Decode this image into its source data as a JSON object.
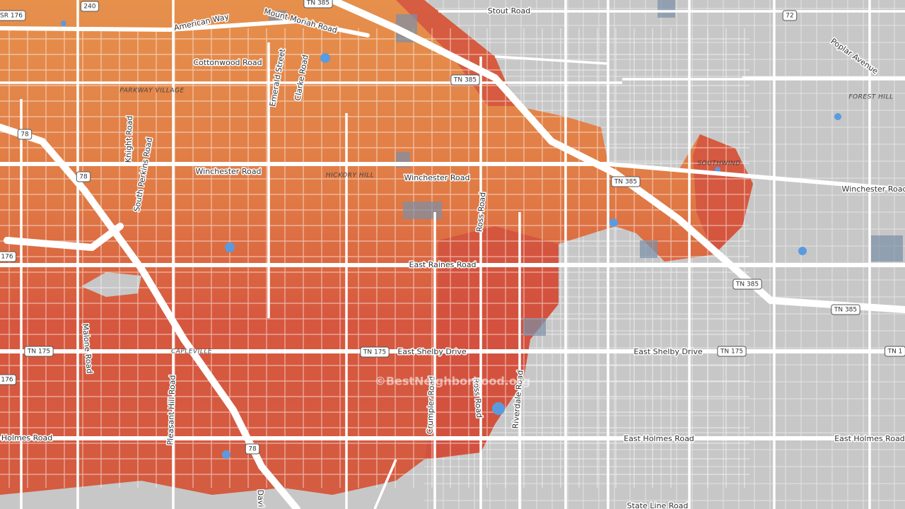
{
  "map": {
    "labels": [
      "SR 176",
      "240",
      "TN 385",
      "Stout Road",
      "72",
      "Poplar Avenue",
      "American Way",
      "Mount Moriah Road",
      "Cottonwood Road",
      "Emerald Street",
      "Clarke Road",
      "PARKWAY VILLAGE",
      "TN 385",
      "FOREST HILL",
      "78",
      "Knight Road",
      "South Perkins Road",
      "Winchester Road",
      "HICKORY HILL",
      "Winchester Road",
      "TN 385",
      "SOUTHWIND",
      "Winchester Road",
      "78",
      "Ross Road",
      "176",
      "East Raines Road",
      "TN 385",
      "TN 385",
      "Malone Road",
      "TN 175",
      "CAPLEVILLE",
      "TN 175",
      "East Shelby Drive",
      "East Shelby Drive",
      "TN 175",
      "TN 1",
      "176",
      "Pleasant Hill Road",
      "Riverdale Road",
      "Ross Road",
      "Crumpler Road",
      "Holmes Road",
      "78",
      "East Holmes Road",
      "East Holmes Road",
      "State Line Road",
      "Davi",
      "©BestNeighborhood.org"
    ]
  }
}
